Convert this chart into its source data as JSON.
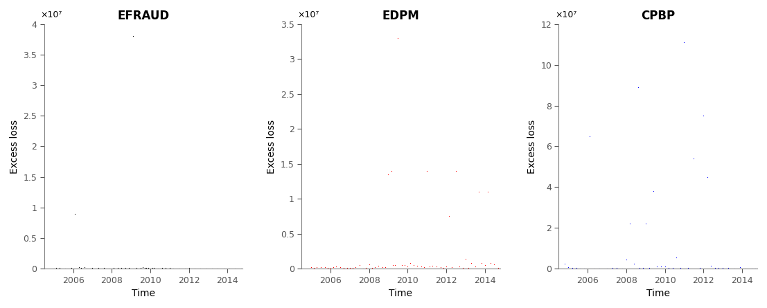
{
  "panels": [
    {
      "title": "EFRAUD",
      "color": "#000000",
      "xlim": [
        2004.5,
        2014.8
      ],
      "ylim": [
        0,
        40000000.0
      ],
      "yticks": [
        0,
        5000000.0,
        10000000.0,
        15000000.0,
        20000000.0,
        25000000.0,
        30000000.0,
        35000000.0,
        40000000.0
      ],
      "ytick_labels": [
        "0",
        "0.5",
        "1",
        "1.5",
        "2",
        "2.5",
        "3",
        "3.5",
        "4"
      ],
      "scale_label": "×10⁷",
      "data_x": [
        2005.1,
        2005.3,
        2005.6,
        2005.9,
        2006.1,
        2006.3,
        2006.4,
        2006.6,
        2006.7,
        2007.0,
        2007.3,
        2007.6,
        2007.9,
        2008.1,
        2008.3,
        2008.5,
        2008.7,
        2008.9,
        2009.1,
        2009.3,
        2009.5,
        2009.6,
        2009.7,
        2009.8,
        2009.9,
        2010.1,
        2010.2,
        2010.4,
        2010.6,
        2010.8,
        2011.0,
        2011.2,
        2011.5,
        2011.8,
        2012.0,
        2012.3,
        2012.6,
        2012.9,
        2013.2,
        2013.5,
        2013.8,
        2014.1,
        2014.4,
        2014.7
      ],
      "data_y": [
        150000.0,
        80000.0,
        60000.0,
        90000.0,
        9000000.0,
        220000.0,
        180000.0,
        200000.0,
        50000.0,
        100000.0,
        150000.0,
        80000.0,
        60000.0,
        150000.0,
        120000.0,
        80000.0,
        110000.0,
        100000.0,
        38000000.0,
        180000.0,
        150000.0,
        200000.0,
        170000.0,
        140000.0,
        110000.0,
        90000.0,
        80000.0,
        70000.0,
        80000.0,
        90000.0,
        80000.0,
        60000.0,
        70000.0,
        50000.0,
        80000.0,
        60000.0,
        50000.0,
        40000.0,
        50000.0,
        40000.0,
        30000.0,
        60000.0,
        50000.0,
        40000.0
      ]
    },
    {
      "title": "EDPM",
      "color": "#ff0000",
      "xlim": [
        2004.5,
        2014.8
      ],
      "ylim": [
        0,
        35000000.0
      ],
      "yticks": [
        0,
        5000000.0,
        10000000.0,
        15000000.0,
        20000000.0,
        25000000.0,
        30000000.0,
        35000000.0
      ],
      "ytick_labels": [
        "0",
        "0.5",
        "1",
        "1.5",
        "2",
        "2.5",
        "3",
        "3.5"
      ],
      "scale_label": "×10⁷",
      "data_x": [
        2005.0,
        2005.15,
        2005.3,
        2005.5,
        2005.7,
        2005.85,
        2006.0,
        2006.15,
        2006.3,
        2006.5,
        2006.7,
        2006.85,
        2007.0,
        2007.15,
        2007.3,
        2007.5,
        2007.7,
        2007.85,
        2008.0,
        2008.15,
        2008.3,
        2008.5,
        2008.7,
        2008.85,
        2009.0,
        2009.15,
        2009.25,
        2009.35,
        2009.5,
        2009.7,
        2009.85,
        2010.0,
        2010.15,
        2010.3,
        2010.5,
        2010.7,
        2010.85,
        2011.0,
        2011.15,
        2011.3,
        2011.5,
        2011.7,
        2011.85,
        2012.0,
        2012.15,
        2012.3,
        2012.5,
        2012.7,
        2012.85,
        2013.0,
        2013.15,
        2013.3,
        2013.5,
        2013.7,
        2013.85,
        2014.0,
        2014.15,
        2014.3,
        2014.5,
        2014.7
      ],
      "data_y": [
        250000.0,
        150000.0,
        220000.0,
        180000.0,
        260000.0,
        120000.0,
        100000.0,
        200000.0,
        280000.0,
        250000.0,
        150000.0,
        110000.0,
        120000.0,
        150000.0,
        180000.0,
        480000.0,
        50000.0,
        120000.0,
        620000.0,
        150000.0,
        180000.0,
        450000.0,
        200000.0,
        180000.0,
        13500000.0,
        14000000.0,
        500000.0,
        480000.0,
        33000000.0,
        520000.0,
        500000.0,
        340000.0,
        850000.0,
        520000.0,
        450000.0,
        300000.0,
        250000.0,
        14000000.0,
        350000.0,
        400000.0,
        350000.0,
        250000.0,
        150000.0,
        300000.0,
        7500000.0,
        200000.0,
        14000000.0,
        300000.0,
        150000.0,
        1400000.0,
        120000.0,
        800000.0,
        300000.0,
        11000000.0,
        800000.0,
        550000.0,
        11000000.0,
        800000.0,
        600000.0,
        140000.0
      ]
    },
    {
      "title": "CPBP",
      "color": "#0000ff",
      "xlim": [
        2004.5,
        2014.8
      ],
      "ylim": [
        0,
        120000000.0
      ],
      "yticks": [
        0,
        20000000.0,
        40000000.0,
        60000000.0,
        80000000.0,
        100000000.0,
        120000000.0
      ],
      "ytick_labels": [
        "0",
        "2",
        "4",
        "6",
        "8",
        "10",
        "12"
      ],
      "scale_label": "×10⁷",
      "data_x": [
        2004.8,
        2005.0,
        2005.2,
        2005.4,
        2005.6,
        2005.8,
        2006.1,
        2006.3,
        2006.6,
        2007.0,
        2007.3,
        2007.5,
        2007.8,
        2008.0,
        2008.2,
        2008.4,
        2008.6,
        2008.7,
        2008.85,
        2009.0,
        2009.2,
        2009.4,
        2009.6,
        2009.8,
        2010.0,
        2010.2,
        2010.4,
        2010.6,
        2010.8,
        2011.0,
        2011.2,
        2011.5,
        2011.8,
        2012.0,
        2012.2,
        2012.4,
        2012.6,
        2012.8,
        2013.0,
        2013.3,
        2013.6,
        2013.9,
        2014.2,
        2014.5,
        2014.7
      ],
      "data_y": [
        2500000.0,
        700000.0,
        300000.0,
        250000.0,
        150000.0,
        120000.0,
        65000000.0,
        200000.0,
        150000.0,
        200000.0,
        300000.0,
        250000.0,
        180000.0,
        4600000.0,
        22000000.0,
        2300000.0,
        89000000.0,
        450000.0,
        250000.0,
        22000000.0,
        450000.0,
        38000000.0,
        1200000.0,
        1100000.0,
        1000000.0,
        380000.0,
        350000.0,
        5400000.0,
        320000.0,
        111000000.0,
        300000.0,
        54000000.0,
        250000.0,
        75000000.0,
        45000000.0,
        1500000.0,
        300000.0,
        300000.0,
        300000.0,
        250000.0,
        200000.0,
        600000.0,
        200000.0,
        200000.0,
        150000.0
      ]
    }
  ],
  "xlabel": "Time",
  "ylabel": "Excess loss",
  "xticks": [
    2006,
    2008,
    2010,
    2012,
    2014
  ],
  "background_color": "#ffffff",
  "marker_size": 3,
  "title_fontsize": 12,
  "label_fontsize": 10,
  "tick_fontsize": 9
}
